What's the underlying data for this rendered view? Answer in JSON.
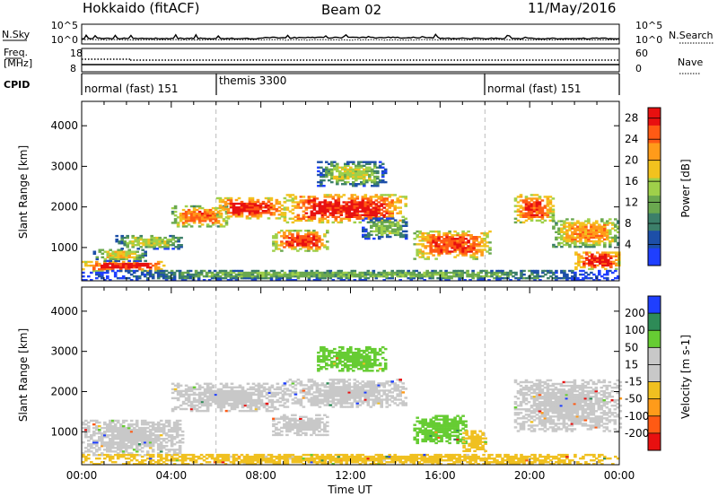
{
  "header": {
    "site": "Hokkaido (fitACF)",
    "beam": "Beam 02",
    "date": "11/May/2016"
  },
  "top_panel": {
    "left_labels": [
      "N.Sky",
      "Freq.",
      "[MHz]",
      "CPID"
    ],
    "nsky_ticks": [
      "10^5",
      "10^0"
    ],
    "freq_ticks": [
      "18",
      "8"
    ],
    "right_labels": [
      "N.Search",
      "Nave"
    ],
    "nsearch_ticks": [
      "10^5",
      "10^0"
    ],
    "nave_ticks": [
      "60",
      "0"
    ],
    "cpid_segments": [
      {
        "label": "normal (fast) 151",
        "start": 0,
        "end": 6
      },
      {
        "label": "themis 3300",
        "start": 6,
        "end": 18
      },
      {
        "label": "normal (fast) 151",
        "start": 18,
        "end": 24
      }
    ]
  },
  "colors": {
    "power_scale": [
      "#1f3fff",
      "#1d4fa8",
      "#3c7f6a",
      "#6aa84f",
      "#9fd04a",
      "#f2c21e",
      "#ff9b1a",
      "#ff5a14",
      "#e81010"
    ],
    "velocity_scale": [
      "#e81010",
      "#ff5a14",
      "#ff9b1a",
      "#f0c020",
      "#c8c8c8",
      "#c8c8c8",
      "#66cc33",
      "#2e8b57",
      "#1f3fff"
    ],
    "ground_scatter": "#c8c8c8"
  },
  "chart_data": [
    {
      "type": "heatmap",
      "title": "Hokkaido (fitACF) Beam 02 11/May/2016",
      "xlabel": "",
      "ylabel": "Slant Range [km]",
      "x_range": [
        "00:00",
        "24:00"
      ],
      "ylim": [
        180,
        4600
      ],
      "yticks": [
        "1000",
        "2000",
        "3000",
        "4000"
      ],
      "colorbar": {
        "label": "Power [dB]",
        "ticks": [
          "4",
          "8",
          "12",
          "16",
          "20",
          "24",
          "28"
        ],
        "range": [
          0,
          30
        ]
      },
      "regions": [
        {
          "t0": 0.0,
          "t1": 3.8,
          "r0": 400,
          "r1": 650,
          "level": 28
        },
        {
          "t0": 0.5,
          "t1": 2.8,
          "r0": 650,
          "r1": 950,
          "level": 18
        },
        {
          "t0": 1.5,
          "t1": 4.5,
          "r0": 950,
          "r1": 1300,
          "level": 16
        },
        {
          "t0": 4.0,
          "t1": 6.5,
          "r0": 1500,
          "r1": 2000,
          "level": 24
        },
        {
          "t0": 6.0,
          "t1": 9.0,
          "r0": 1700,
          "r1": 2200,
          "level": 28
        },
        {
          "t0": 8.5,
          "t1": 11.0,
          "r0": 900,
          "r1": 1400,
          "level": 26
        },
        {
          "t0": 9.0,
          "t1": 14.5,
          "r0": 1600,
          "r1": 2300,
          "level": 28
        },
        {
          "t0": 10.5,
          "t1": 13.5,
          "r0": 2500,
          "r1": 3100,
          "level": 16
        },
        {
          "t0": 12.5,
          "t1": 14.5,
          "r0": 1200,
          "r1": 1700,
          "level": 14
        },
        {
          "t0": 14.8,
          "t1": 18.2,
          "r0": 700,
          "r1": 1400,
          "level": 26
        },
        {
          "t0": 19.3,
          "t1": 21.0,
          "r0": 1600,
          "r1": 2300,
          "level": 26
        },
        {
          "t0": 21.0,
          "t1": 24.0,
          "r0": 1000,
          "r1": 1700,
          "level": 22
        },
        {
          "t0": 22.0,
          "t1": 24.0,
          "r0": 450,
          "r1": 900,
          "level": 28
        },
        {
          "t0": 0.0,
          "t1": 24.0,
          "r0": 180,
          "r1": 450,
          "level": 12
        }
      ],
      "series": []
    },
    {
      "type": "heatmap",
      "title": "",
      "xlabel": "Time UT",
      "ylabel": "Slant Range [km]",
      "x_range": [
        "00:00",
        "24:00"
      ],
      "xticks": [
        "00:00",
        "04:00",
        "08:00",
        "12:00",
        "16:00",
        "20:00",
        "00:00"
      ],
      "ylim": [
        180,
        4600
      ],
      "yticks": [
        "1000",
        "2000",
        "3000",
        "4000"
      ],
      "colorbar": {
        "label": "Velocity [m s-1]",
        "ticks": [
          "200",
          "100",
          "50",
          "15",
          "-15",
          "-50",
          "-100",
          "-200"
        ],
        "range": [
          -250,
          250
        ]
      },
      "regions": [
        {
          "t0": 0.0,
          "t1": 4.5,
          "r0": 400,
          "r1": 1300,
          "value": 0
        },
        {
          "t0": 4.0,
          "t1": 9.0,
          "r0": 1500,
          "r1": 2200,
          "value": 0
        },
        {
          "t0": 8.5,
          "t1": 11.0,
          "r0": 900,
          "r1": 1400,
          "value": 0
        },
        {
          "t0": 9.0,
          "t1": 14.5,
          "r0": 1600,
          "r1": 2300,
          "value": 0
        },
        {
          "t0": 10.5,
          "t1": 13.5,
          "r0": 2500,
          "r1": 3100,
          "value": 40
        },
        {
          "t0": 14.8,
          "t1": 17.2,
          "r0": 700,
          "r1": 1400,
          "value": 40
        },
        {
          "t0": 17.0,
          "t1": 18.0,
          "r0": 500,
          "r1": 1000,
          "value": -40
        },
        {
          "t0": 19.3,
          "t1": 24.0,
          "r0": 1000,
          "r1": 2300,
          "value": 0
        },
        {
          "t0": 0.0,
          "t1": 24.0,
          "r0": 180,
          "r1": 450,
          "value": -30
        }
      ],
      "series": []
    }
  ]
}
